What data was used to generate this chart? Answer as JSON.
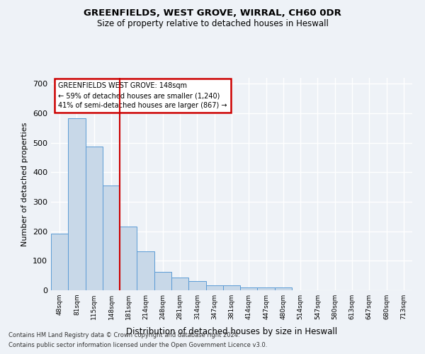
{
  "title1": "GREENFIELDS, WEST GROVE, WIRRAL, CH60 0DR",
  "title2": "Size of property relative to detached houses in Heswall",
  "xlabel": "Distribution of detached houses by size in Heswall",
  "ylabel": "Number of detached properties",
  "footer1": "Contains HM Land Registry data © Crown copyright and database right 2024.",
  "footer2": "Contains public sector information licensed under the Open Government Licence v3.0.",
  "annotation_title": "GREENFIELDS WEST GROVE: 148sqm",
  "annotation_line1": "← 59% of detached houses are smaller (1,240)",
  "annotation_line2": "41% of semi-detached houses are larger (867) →",
  "bar_color": "#c8d8e8",
  "bar_edge_color": "#5b9bd5",
  "red_line_index": 3,
  "categories": [
    "48sqm",
    "81sqm",
    "115sqm",
    "148sqm",
    "181sqm",
    "214sqm",
    "248sqm",
    "281sqm",
    "314sqm",
    "347sqm",
    "381sqm",
    "414sqm",
    "447sqm",
    "480sqm",
    "514sqm",
    "547sqm",
    "580sqm",
    "613sqm",
    "647sqm",
    "680sqm",
    "713sqm"
  ],
  "values": [
    193,
    583,
    487,
    355,
    215,
    132,
    63,
    44,
    31,
    16,
    16,
    9,
    10,
    9,
    0,
    0,
    0,
    0,
    0,
    0,
    0
  ],
  "ylim": [
    0,
    720
  ],
  "yticks": [
    0,
    100,
    200,
    300,
    400,
    500,
    600,
    700
  ],
  "background_color": "#eef2f7",
  "grid_color": "#ffffff",
  "annotation_box_color": "#ffffff",
  "annotation_box_edge_color": "#cc0000",
  "red_line_color": "#cc0000"
}
